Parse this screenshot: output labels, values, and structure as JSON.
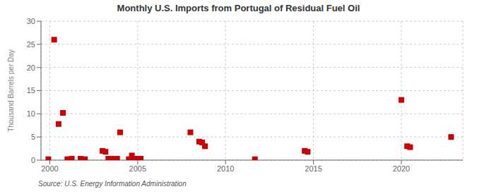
{
  "chart_data": {
    "type": "scatter",
    "title": "Monthly U.S. Imports from Portugal of Residual Fuel Oil",
    "ylabel": "Thousand Barrels per Day",
    "annotations": [
      "Source: U.S. Energy Information Administration"
    ],
    "x": [
      1999.92,
      2000.25,
      2000.5,
      2000.75,
      2001.0,
      2001.25,
      2001.75,
      2002.0,
      2003.0,
      2003.17,
      2003.33,
      2003.5,
      2003.67,
      2003.83,
      2004.0,
      2004.5,
      2004.67,
      2004.75,
      2004.83,
      2005.0,
      2005.08,
      2005.17,
      2008.0,
      2008.5,
      2008.67,
      2008.83,
      2011.67,
      2014.5,
      2014.67,
      2020.0,
      2020.33,
      2020.5,
      2022.83
    ],
    "values": [
      0.2,
      26.0,
      7.8,
      10.2,
      0.2,
      0.3,
      0.3,
      0.2,
      2.0,
      1.8,
      0.3,
      0.3,
      0.2,
      0.3,
      6.0,
      0.2,
      1.0,
      0.3,
      0.2,
      0.3,
      0.3,
      0.3,
      6.0,
      4.0,
      3.8,
      3.0,
      0.2,
      2.0,
      1.8,
      13.0,
      3.0,
      2.8,
      5.0
    ],
    "color": "#cc0000",
    "marker": "square",
    "xlim": [
      1999.5,
      2023.5
    ],
    "xticks": [
      2000,
      2005,
      2010,
      2015,
      2020
    ],
    "ylim": [
      0,
      30
    ],
    "yticks": [
      0,
      5,
      10,
      15,
      20,
      25,
      30
    ],
    "grid": true
  }
}
